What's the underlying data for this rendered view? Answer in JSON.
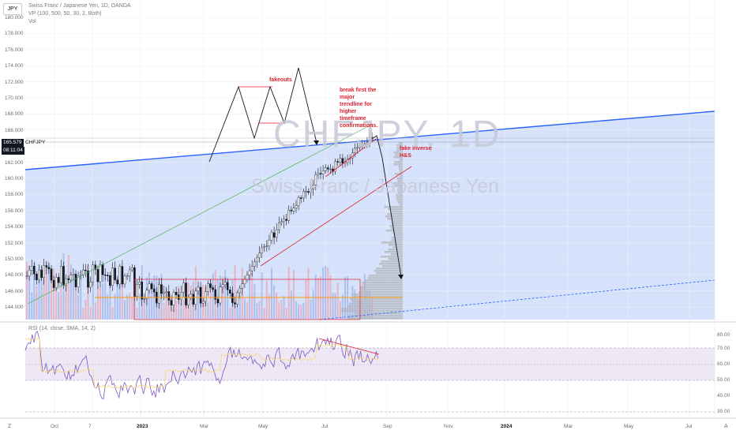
{
  "header": {
    "symbol_badge": "JPY",
    "title_line": "Swiss Franc / Japanese Yen, 1D, OANDA",
    "vp_line": "VP (100, 500, 50, 30, 2, Both)",
    "vol_line": "Vol"
  },
  "price_axis": [
    "180.000",
    "178.000",
    "176.000",
    "174.000",
    "172.000",
    "170.000",
    "168.000",
    "166.000",
    "164.000",
    "162.000",
    "160.000",
    "158.000",
    "156.000",
    "154.000",
    "152.000",
    "150.000",
    "148.000",
    "146.000",
    "144.000"
  ],
  "current": {
    "price": "165.579",
    "countdown": "08:11:04",
    "symbol": "CHFJPY"
  },
  "watermark": {
    "symbol": "CHFJPY, 1D",
    "name": "Swiss Franc / Japanese Yen"
  },
  "annotations": {
    "fakeouts": "fakeouts",
    "break_lines": [
      "break first the",
      "major",
      "trendline for",
      "higher",
      "timeframe",
      "confirmations."
    ],
    "fake_hs_lines": [
      "fake inverse",
      "H&S"
    ]
  },
  "rsi": {
    "label": "RSI (14, close, SMA, 14, 2)",
    "axis": [
      "80.00",
      "70.00",
      "60.00",
      "50.00",
      "40.00",
      "30.00"
    ]
  },
  "time_axis": [
    {
      "label": "Oct",
      "bold": false
    },
    {
      "label": "7",
      "bold": false
    },
    {
      "label": "2023",
      "bold": true
    },
    {
      "label": "Mar",
      "bold": false
    },
    {
      "label": "May",
      "bold": false
    },
    {
      "label": "Jul",
      "bold": false
    },
    {
      "label": "Sep",
      "bold": false
    },
    {
      "label": "Nov",
      "bold": false
    },
    {
      "label": "2024",
      "bold": true
    },
    {
      "label": "Mar",
      "bold": false
    },
    {
      "label": "May",
      "bold": false
    },
    {
      "label": "Jul",
      "bold": false
    }
  ],
  "corners": {
    "left": "Z",
    "right": "A"
  },
  "colors": {
    "channel_fill": "#cddcf9",
    "blue_line": "#2962ff",
    "red": "#e01e2c",
    "green": "#4caf50",
    "rsi_line": "#7e57c2",
    "rsi_band": "#ede7f6",
    "vp_bar": "#b2b5be"
  }
}
